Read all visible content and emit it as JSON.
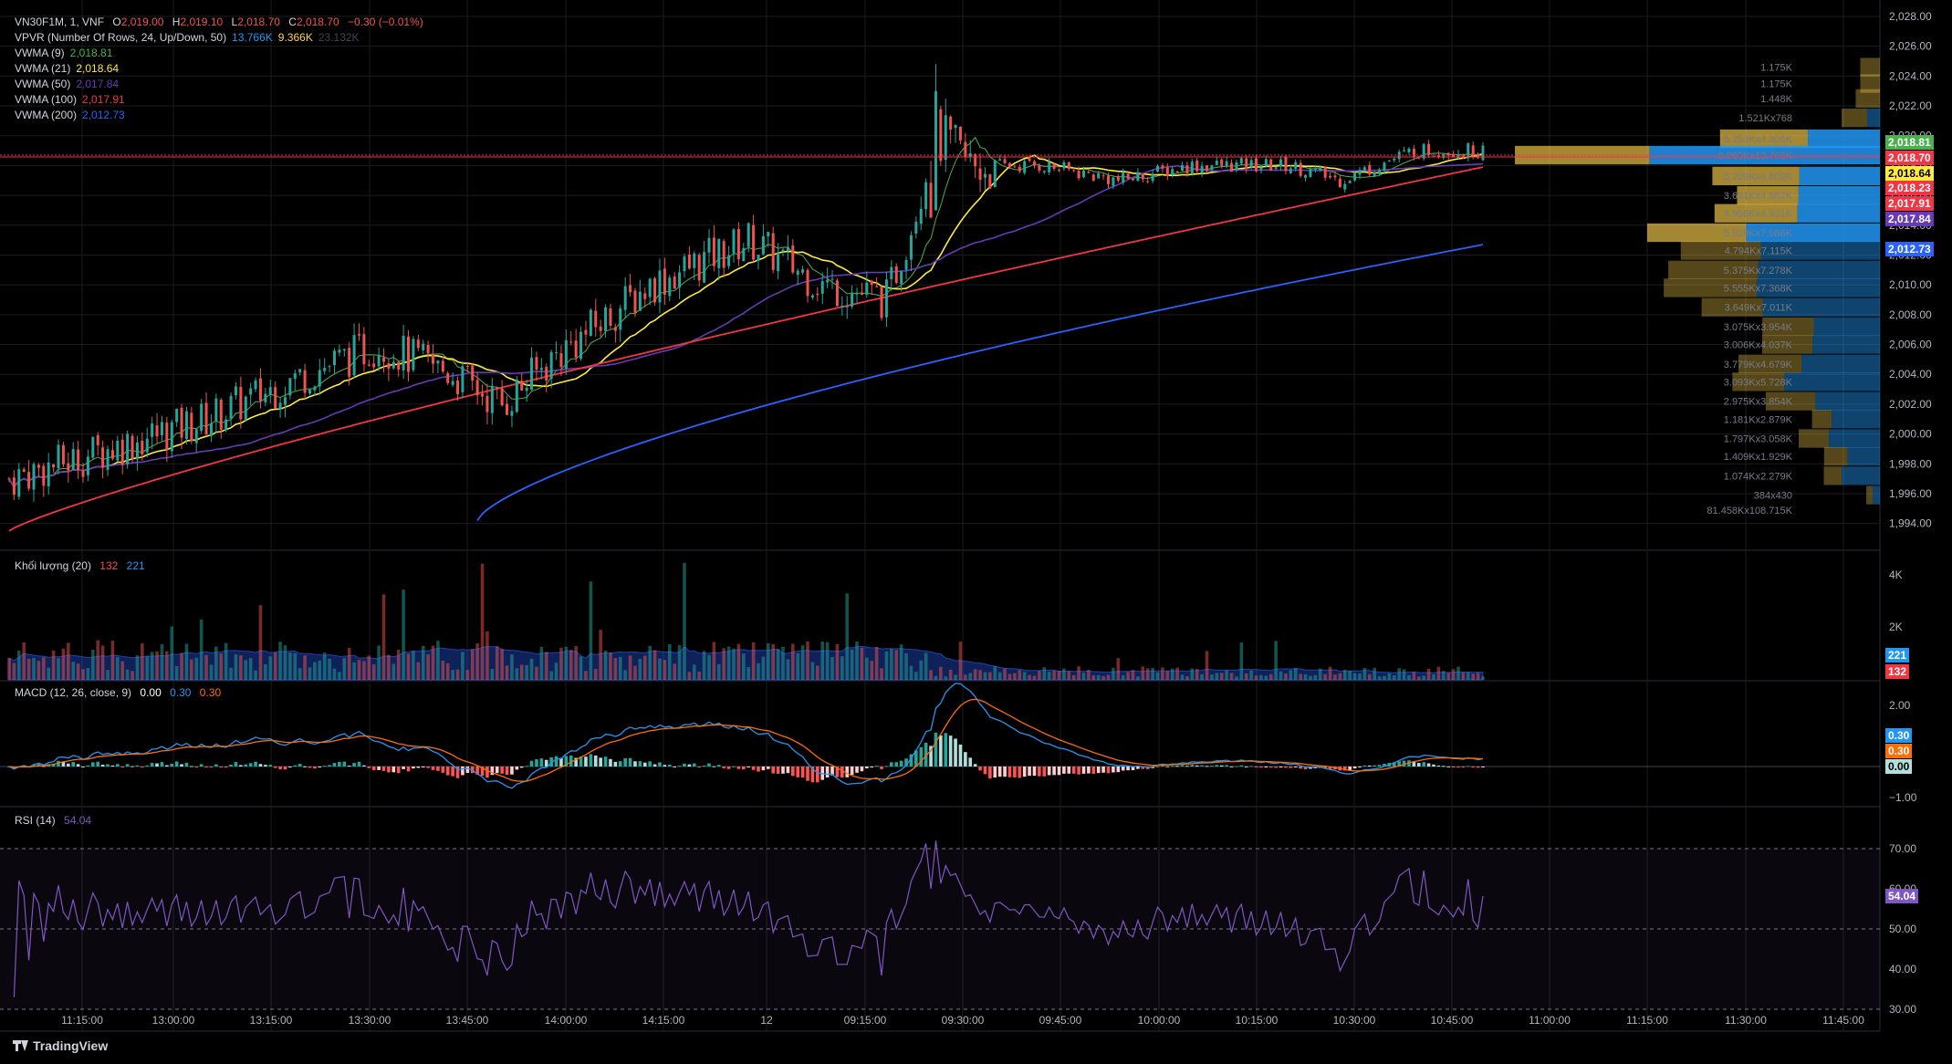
{
  "header": {
    "symbol": "VN30F1M, 1, VNF",
    "o_label": "O",
    "o": "2,019.00",
    "h_label": "H",
    "h": "2,019.10",
    "l_label": "L",
    "l": "2,018.70",
    "c_label": "C",
    "c": "2,018.70",
    "change": "−0.30 (−0.01%)"
  },
  "indicators": [
    {
      "label": "VPVR (Number Of Rows, 24, Up/Down, 50)",
      "values": [
        "13.766K",
        "9.366K",
        "23.132K"
      ],
      "colors": [
        "#2196f3",
        "#ffd34f",
        "#434651"
      ]
    },
    {
      "label": "VWMA (9)",
      "values": [
        "2,018.81"
      ],
      "colors": [
        "#4caf50"
      ]
    },
    {
      "label": "VWMA (21)",
      "values": [
        "2,018.64"
      ],
      "colors": [
        "#ffeb3b"
      ]
    },
    {
      "label": "VWMA (50)",
      "values": [
        "2,017.84"
      ],
      "colors": [
        "#673ab7"
      ]
    },
    {
      "label": "VWMA (100)",
      "values": [
        "2,017.91"
      ],
      "colors": [
        "#f23645"
      ]
    },
    {
      "label": "VWMA (200)",
      "values": [
        "2,012.73"
      ],
      "colors": [
        "#2962ff"
      ]
    }
  ],
  "volume_legend": {
    "label": "Khối lượng (20)",
    "v1": "132",
    "v2": "221"
  },
  "macd_legend": {
    "label": "MACD (12, 26, close, 9)",
    "v1": "0.00",
    "v2": "0.30",
    "v3": "0.30"
  },
  "rsi_legend": {
    "label": "RSI (14)",
    "v1": "54.04"
  },
  "price_axis": [
    "2,028.00",
    "2,026.00",
    "2,024.00",
    "2,022.00",
    "2,020.00",
    "2,018.00",
    "2,016.00",
    "2,014.00",
    "2,012.00",
    "2,010.00",
    "2,008.00",
    "2,006.00",
    "2,004.00",
    "2,002.00",
    "2,000.00",
    "1,998.00",
    "1,996.00",
    "1,994.00"
  ],
  "volume_axis": [
    "4K",
    "2K"
  ],
  "macd_axis": [
    "2.00",
    "−1.00"
  ],
  "rsi_axis": [
    "70.00",
    "60.00",
    "50.00",
    "40.00",
    "30.00"
  ],
  "time_axis": [
    "11:15:00",
    "13:00:00",
    "13:15:00",
    "13:30:00",
    "13:45:00",
    "14:00:00",
    "14:15:00",
    "12",
    "09:15:00",
    "09:30:00",
    "09:45:00",
    "10:00:00",
    "10:15:00",
    "10:30:00",
    "10:45:00",
    "11:00:00",
    "11:15:00",
    "11:30:00",
    "11:45:00"
  ],
  "price_badges": [
    {
      "text": "2,018.81",
      "bg": "#4caf50",
      "fg": "#ffffff"
    },
    {
      "text": "2,018.70",
      "bg": "#f23645",
      "fg": "#ffffff"
    },
    {
      "text": "2,018.64",
      "bg": "#ffeb3b",
      "fg": "#000000"
    },
    {
      "text": "2,018.23",
      "bg": "#f23645",
      "fg": "#ffffff"
    },
    {
      "text": "2,017.91",
      "bg": "#f23645",
      "fg": "#ffffff"
    },
    {
      "text": "2,017.84",
      "bg": "#673ab7",
      "fg": "#ffffff"
    },
    {
      "text": "2,012.73",
      "bg": "#2962ff",
      "fg": "#ffffff"
    }
  ],
  "volume_badges": [
    {
      "text": "221",
      "bg": "#2196f3"
    },
    {
      "text": "132",
      "bg": "#f23645"
    }
  ],
  "macd_badges": [
    {
      "text": "0.30",
      "bg": "#2196f3",
      "fg": "#ffffff"
    },
    {
      "text": "0.30",
      "bg": "#ff6d00",
      "fg": "#ffffff"
    },
    {
      "text": "0.00",
      "bg": "#b2dfdb",
      "fg": "#000000"
    }
  ],
  "rsi_badge": {
    "text": "54.04",
    "bg": "#7e57c2"
  },
  "vpvr_rows": [
    {
      "price": 2024.6,
      "label": "1.175K",
      "up": 0,
      "down": 1175
    },
    {
      "price": 2023.5,
      "label": "1.175K",
      "up": 0,
      "down": 1175
    },
    {
      "price": 2022.5,
      "label": "1.448K",
      "up": 0,
      "down": 1448
    },
    {
      "price": 2021.2,
      "label": "1.521Kx768",
      "up": 768,
      "down": 1521
    },
    {
      "price": 2019.8,
      "label": "5.253Kx4.306K",
      "up": 4306,
      "down": 5253
    },
    {
      "price": 2018.7,
      "label": "8.060Kx13.766K",
      "up": 13766,
      "down": 8060
    },
    {
      "price": 2017.3,
      "label": "5.209Kx4.809K",
      "up": 4809,
      "down": 5209
    },
    {
      "price": 2016.0,
      "label": "3.681Kx4.862K",
      "up": 4862,
      "down": 3681
    },
    {
      "price": 2014.8,
      "label": "4.956Kx4.931K",
      "up": 4931,
      "down": 4956
    },
    {
      "price": 2013.5,
      "label": "5.929Kx7.986K",
      "up": 7986,
      "down": 5929
    },
    {
      "price": 2012.3,
      "label": "4.794Kx7.115K",
      "up": 7115,
      "down": 4794
    },
    {
      "price": 2011.0,
      "label": "5.375Kx7.278K",
      "up": 7278,
      "down": 5375
    },
    {
      "price": 2009.8,
      "label": "5.555Kx7.368K",
      "up": 7368,
      "down": 5555
    },
    {
      "price": 2008.5,
      "label": "3.649Kx7.011K",
      "up": 7011,
      "down": 3649
    },
    {
      "price": 2007.2,
      "label": "3.075Kx3.954K",
      "up": 3954,
      "down": 3075
    },
    {
      "price": 2006.0,
      "label": "3.006Kx4.037K",
      "up": 4037,
      "down": 3006
    },
    {
      "price": 2004.7,
      "label": "3.779Kx4.679K",
      "up": 4679,
      "down": 3779
    },
    {
      "price": 2003.5,
      "label": "3.093Kx5.728K",
      "up": 5728,
      "down": 3093
    },
    {
      "price": 2002.2,
      "label": "2.975Kx3.854K",
      "up": 3854,
      "down": 2975
    },
    {
      "price": 2001.0,
      "label": "1.181Kx2.879K",
      "up": 2879,
      "down": 1181
    },
    {
      "price": 1999.7,
      "label": "1.797Kx3.058K",
      "up": 3058,
      "down": 1797
    },
    {
      "price": 1998.5,
      "label": "1.409Kx1.929K",
      "up": 1929,
      "down": 1409
    },
    {
      "price": 1997.2,
      "label": "1.074Kx2.279K",
      "up": 2279,
      "down": 1074
    },
    {
      "price": 1995.9,
      "label": "384x430",
      "up": 430,
      "down": 384
    }
  ],
  "vpvr_total": "81.458Kx108.715K",
  "colors": {
    "up": "#26a69a",
    "down": "#ef5350",
    "grid": "#1c1c1c",
    "vwma9": "#4caf50",
    "vwma21": "#ffeb3b",
    "vwma50": "#673ab7",
    "vwma100": "#f23645",
    "vwma200": "#2962ff",
    "macd": "#2196f3",
    "signal": "#ff6d00",
    "rsi": "#7e57c2",
    "volma": "#2962ff"
  },
  "brand": "TradingView"
}
